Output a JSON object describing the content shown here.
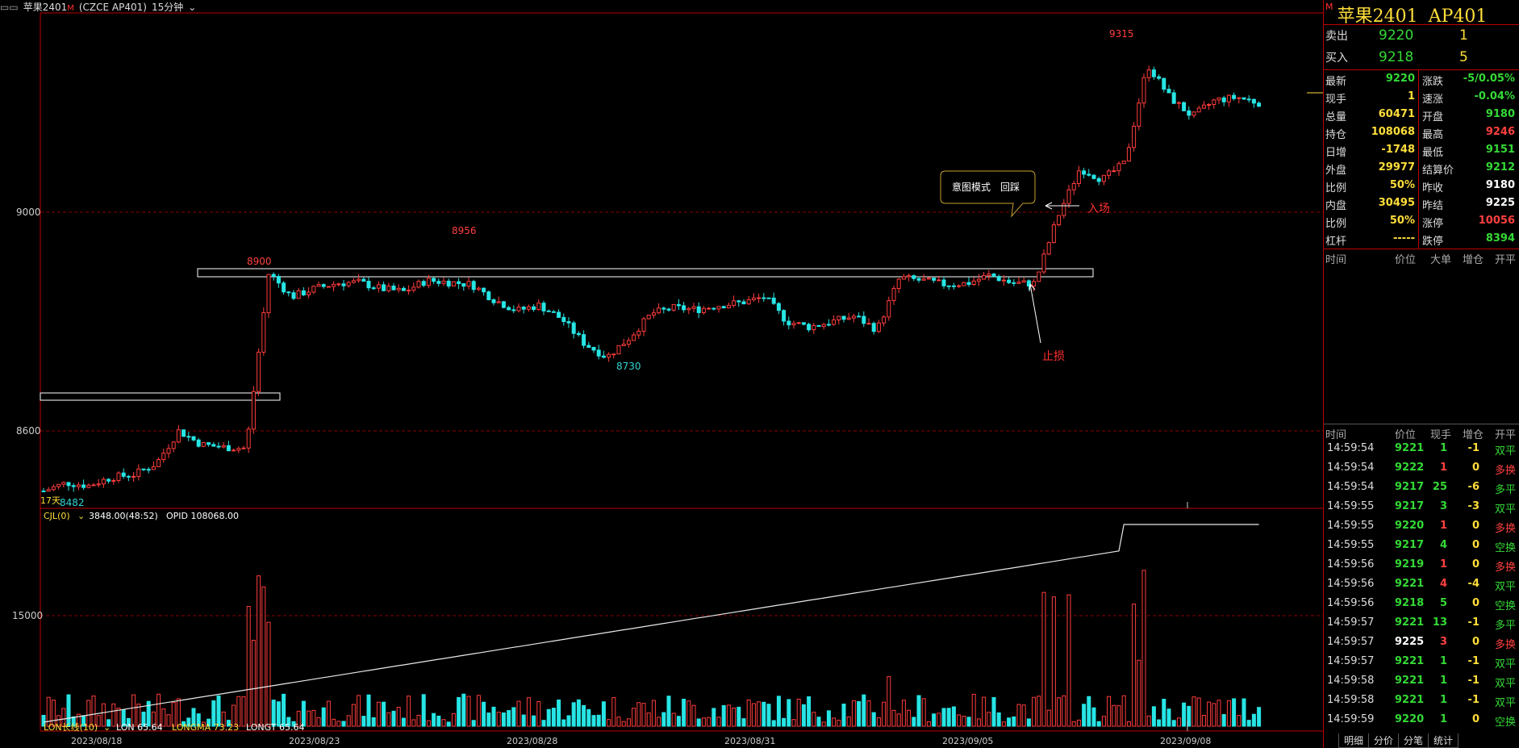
{
  "topbar": {
    "symbol": "苹果2401",
    "badge": "M",
    "code": "(CZCE AP401)",
    "period": "15分钟"
  },
  "main_chart": {
    "price_ticks": [
      "9000",
      "8600"
    ],
    "volume_ticks": [
      "15000"
    ],
    "x_labels": [
      "2023/08/18",
      "2023/08/23",
      "2023/08/28",
      "2023/08/31",
      "2023/09/05",
      "2023/09/08"
    ],
    "annotations": {
      "high_8900": "8900",
      "high_8956": "8956",
      "high_9315": "9315",
      "low_8730": "8730",
      "low_8482": "8482",
      "days": "17天",
      "entry": "入场",
      "stop": "止损",
      "callout": "意图模式　回踩"
    },
    "volume_header": {
      "name": "CJL(0)",
      "value": "3848.00(48:52)",
      "opid": "OPID 108068.00"
    },
    "indicator_footer": {
      "lon_name": "LON长线(10)",
      "lon": "LON 65.64",
      "longma": "LONGMA 73.23",
      "longt": "LONGT 65.64"
    }
  },
  "chart_data": {
    "type": "candlestick",
    "title": "苹果2401 AP401 15分钟",
    "yticks": [
      8600,
      9000
    ],
    "ylim": [
      8450,
      9340
    ],
    "x_labels": [
      "2023/08/18",
      "2023/08/23",
      "2023/08/28",
      "2023/08/31",
      "2023/09/05",
      "2023/09/08"
    ],
    "marked_points": [
      {
        "label": "8482",
        "value": 8482
      },
      {
        "label": "8900",
        "value": 8900
      },
      {
        "label": "8956",
        "value": 8956
      },
      {
        "label": "8730",
        "value": 8730
      },
      {
        "label": "9315",
        "value": 9315
      }
    ],
    "close_series": [
      8490,
      8505,
      8500,
      8515,
      8520,
      8540,
      8600,
      8575,
      8570,
      8568,
      8890,
      8845,
      8860,
      8870,
      8872,
      8860,
      8855,
      8875,
      8872,
      8868,
      8840,
      8820,
      8830,
      8805,
      8760,
      8735,
      8770,
      8815,
      8825,
      8822,
      8830,
      8835,
      8845,
      8800,
      8790,
      8800,
      8810,
      8785,
      8880,
      8875,
      8868,
      8870,
      8885,
      8870,
      8870,
      8990,
      9080,
      9060,
      9090,
      9270,
      9210,
      9175,
      9205,
      9210,
      9200
    ]
  },
  "right_panel": {
    "title": {
      "name": "苹果2401",
      "code": "AP401",
      "badge": "M"
    },
    "ask": {
      "label": "卖出",
      "price": "9220",
      "qty": "1"
    },
    "bid": {
      "label": "买入",
      "price": "9218",
      "qty": "5"
    },
    "stats": [
      {
        "l1": "最新",
        "v1": "9220",
        "c1": "#34d936",
        "l2": "涨跌",
        "v2": "-5/0.05%",
        "c2": "#34d936"
      },
      {
        "l1": "现手",
        "v1": "1",
        "c1": "#ffde3a",
        "l2": "速涨",
        "v2": "-0.04%",
        "c2": "#34d936"
      },
      {
        "l1": "总量",
        "v1": "60471",
        "c1": "#ffde3a",
        "l2": "开盘",
        "v2": "9180",
        "c2": "#34d936"
      },
      {
        "l1": "持仓",
        "v1": "108068",
        "c1": "#ffde3a",
        "l2": "最高",
        "v2": "9246",
        "c2": "#ff4040"
      },
      {
        "l1": "日增",
        "v1": "-1748",
        "c1": "#ffde3a",
        "l2": "最低",
        "v2": "9151",
        "c2": "#34d936"
      },
      {
        "l1": "外盘",
        "v1": "29977",
        "c1": "#ffde3a",
        "l2": "结算价",
        "v2": "9212",
        "c2": "#34d936"
      },
      {
        "l1": "比例",
        "v1": "50%",
        "c1": "#ffde3a",
        "l2": "昨收",
        "v2": "9180",
        "c2": "#ffffff"
      },
      {
        "l1": "内盘",
        "v1": "30495",
        "c1": "#ffde3a",
        "l2": "昨结",
        "v2": "9225",
        "c2": "#ffffff"
      },
      {
        "l1": "比例",
        "v1": "50%",
        "c1": "#ffde3a",
        "l2": "涨停",
        "v2": "10056",
        "c2": "#ff4040"
      },
      {
        "l1": "杠杆",
        "v1": "-----",
        "c1": "#ffde3a",
        "l2": "跌停",
        "v2": "8394",
        "c2": "#34d936"
      }
    ],
    "block_header": [
      "时间",
      "价位",
      "大单",
      "增仓",
      "开平"
    ],
    "tick_header": [
      "时间",
      "价位",
      "现手",
      "增仓",
      "开平"
    ],
    "ticks": [
      {
        "t": "14:59:54",
        "p": "9221",
        "pc": "#34d936",
        "q": "1",
        "qc": "#34d936",
        "d": "-1",
        "type": "双平",
        "tc": "#34d936"
      },
      {
        "t": "14:59:54",
        "p": "9222",
        "pc": "#34d936",
        "q": "1",
        "qc": "#ff4040",
        "d": "0",
        "type": "多换",
        "tc": "#ff4040"
      },
      {
        "t": "14:59:54",
        "p": "9217",
        "pc": "#34d936",
        "q": "25",
        "qc": "#34d936",
        "d": "-6",
        "type": "多平",
        "tc": "#34d936"
      },
      {
        "t": "14:59:55",
        "p": "9217",
        "pc": "#34d936",
        "q": "3",
        "qc": "#34d936",
        "d": "-3",
        "type": "双平",
        "tc": "#34d936"
      },
      {
        "t": "14:59:55",
        "p": "9220",
        "pc": "#34d936",
        "q": "1",
        "qc": "#ff4040",
        "d": "0",
        "type": "多换",
        "tc": "#ff4040"
      },
      {
        "t": "14:59:55",
        "p": "9217",
        "pc": "#34d936",
        "q": "4",
        "qc": "#34d936",
        "d": "0",
        "type": "空换",
        "tc": "#34d936"
      },
      {
        "t": "14:59:56",
        "p": "9219",
        "pc": "#34d936",
        "q": "1",
        "qc": "#ff4040",
        "d": "0",
        "type": "多换",
        "tc": "#ff4040"
      },
      {
        "t": "14:59:56",
        "p": "9221",
        "pc": "#34d936",
        "q": "4",
        "qc": "#ff4040",
        "d": "-4",
        "type": "双平",
        "tc": "#34d936"
      },
      {
        "t": "14:59:56",
        "p": "9218",
        "pc": "#34d936",
        "q": "5",
        "qc": "#34d936",
        "d": "0",
        "type": "空换",
        "tc": "#34d936"
      },
      {
        "t": "14:59:57",
        "p": "9221",
        "pc": "#34d936",
        "q": "13",
        "qc": "#34d936",
        "d": "-1",
        "type": "多平",
        "tc": "#34d936"
      },
      {
        "t": "14:59:57",
        "p": "9225",
        "pc": "#ffffff",
        "q": "3",
        "qc": "#ff4040",
        "d": "0",
        "type": "多换",
        "tc": "#ff4040"
      },
      {
        "t": "14:59:57",
        "p": "9221",
        "pc": "#34d936",
        "q": "1",
        "qc": "#34d936",
        "d": "-1",
        "type": "双平",
        "tc": "#34d936"
      },
      {
        "t": "14:59:58",
        "p": "9221",
        "pc": "#34d936",
        "q": "1",
        "qc": "#34d936",
        "d": "-1",
        "type": "双平",
        "tc": "#34d936"
      },
      {
        "t": "14:59:58",
        "p": "9221",
        "pc": "#34d936",
        "q": "1",
        "qc": "#34d936",
        "d": "-1",
        "type": "双平",
        "tc": "#34d936"
      },
      {
        "t": "14:59:59",
        "p": "9220",
        "pc": "#34d936",
        "q": "1",
        "qc": "#34d936",
        "d": "0",
        "type": "空换",
        "tc": "#34d936"
      }
    ],
    "tabs": [
      "明细",
      "分价",
      "分笔",
      "统计"
    ]
  }
}
